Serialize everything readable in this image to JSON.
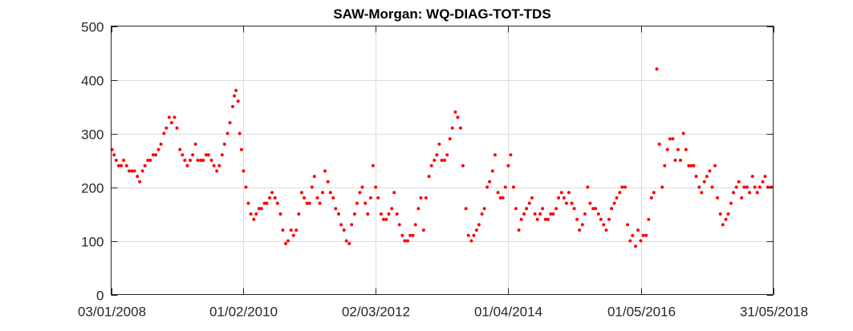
{
  "chart_data": {
    "type": "scatter",
    "title": "SAW-Morgan: WQ-DIAG-TOT-TDS",
    "xlabel": "",
    "ylabel": "",
    "x_axis_type": "date",
    "xlim": [
      "2008-01-03",
      "2018-05-31"
    ],
    "x_tick_labels": [
      "03/01/2008",
      "01/02/2010",
      "02/03/2012",
      "01/04/2014",
      "01/05/2016",
      "31/05/2018"
    ],
    "x_tick_dates": [
      "2008-01-03",
      "2010-02-01",
      "2012-03-02",
      "2014-04-01",
      "2016-05-01",
      "2018-05-31"
    ],
    "ylim": [
      0,
      500
    ],
    "y_ticks": [
      0,
      100,
      200,
      300,
      400,
      500
    ],
    "y_tick_labels": [
      "0",
      "100",
      "200",
      "300",
      "400",
      "500"
    ],
    "grid": true,
    "marker_color": "#ff0000",
    "series": [
      {
        "points": [
          [
            "2008-01-08",
            270
          ],
          [
            "2008-01-20",
            260
          ],
          [
            "2008-02-01",
            250
          ],
          [
            "2008-02-15",
            240
          ],
          [
            "2008-03-01",
            240
          ],
          [
            "2008-03-15",
            250
          ],
          [
            "2008-04-01",
            240
          ],
          [
            "2008-04-15",
            230
          ],
          [
            "2008-05-01",
            230
          ],
          [
            "2008-05-15",
            230
          ],
          [
            "2008-06-01",
            220
          ],
          [
            "2008-06-15",
            210
          ],
          [
            "2008-07-01",
            230
          ],
          [
            "2008-07-15",
            240
          ],
          [
            "2008-08-01",
            250
          ],
          [
            "2008-08-15",
            250
          ],
          [
            "2008-09-01",
            260
          ],
          [
            "2008-09-15",
            260
          ],
          [
            "2008-10-01",
            270
          ],
          [
            "2008-10-15",
            280
          ],
          [
            "2008-11-01",
            300
          ],
          [
            "2008-11-15",
            310
          ],
          [
            "2008-12-01",
            330
          ],
          [
            "2008-12-15",
            320
          ],
          [
            "2009-01-01",
            330
          ],
          [
            "2009-01-15",
            310
          ],
          [
            "2009-02-01",
            270
          ],
          [
            "2009-02-15",
            260
          ],
          [
            "2009-03-01",
            250
          ],
          [
            "2009-03-15",
            240
          ],
          [
            "2009-04-01",
            250
          ],
          [
            "2009-04-15",
            260
          ],
          [
            "2009-05-01",
            280
          ],
          [
            "2009-05-15",
            250
          ],
          [
            "2009-06-01",
            250
          ],
          [
            "2009-06-15",
            250
          ],
          [
            "2009-07-01",
            260
          ],
          [
            "2009-07-15",
            260
          ],
          [
            "2009-08-01",
            250
          ],
          [
            "2009-08-15",
            240
          ],
          [
            "2009-09-01",
            230
          ],
          [
            "2009-09-15",
            240
          ],
          [
            "2009-10-01",
            260
          ],
          [
            "2009-10-15",
            280
          ],
          [
            "2009-11-01",
            300
          ],
          [
            "2009-11-15",
            320
          ],
          [
            "2009-12-01",
            350
          ],
          [
            "2009-12-10",
            370
          ],
          [
            "2009-12-20",
            380
          ],
          [
            "2010-01-01",
            360
          ],
          [
            "2010-01-10",
            300
          ],
          [
            "2010-01-20",
            270
          ],
          [
            "2010-02-01",
            230
          ],
          [
            "2010-02-15",
            200
          ],
          [
            "2010-03-01",
            170
          ],
          [
            "2010-03-15",
            150
          ],
          [
            "2010-04-01",
            140
          ],
          [
            "2010-04-15",
            150
          ],
          [
            "2010-05-01",
            160
          ],
          [
            "2010-05-15",
            160
          ],
          [
            "2010-06-01",
            170
          ],
          [
            "2010-06-15",
            170
          ],
          [
            "2010-07-01",
            180
          ],
          [
            "2010-07-15",
            190
          ],
          [
            "2010-08-01",
            180
          ],
          [
            "2010-08-15",
            170
          ],
          [
            "2010-09-01",
            150
          ],
          [
            "2010-09-15",
            120
          ],
          [
            "2010-10-01",
            95
          ],
          [
            "2010-10-15",
            100
          ],
          [
            "2010-11-01",
            120
          ],
          [
            "2010-11-15",
            110
          ],
          [
            "2010-12-01",
            120
          ],
          [
            "2010-12-15",
            150
          ],
          [
            "2011-01-01",
            190
          ],
          [
            "2011-01-15",
            180
          ],
          [
            "2011-02-01",
            170
          ],
          [
            "2011-02-15",
            170
          ],
          [
            "2011-03-01",
            200
          ],
          [
            "2011-03-15",
            220
          ],
          [
            "2011-04-01",
            180
          ],
          [
            "2011-04-15",
            170
          ],
          [
            "2011-05-01",
            190
          ],
          [
            "2011-05-15",
            230
          ],
          [
            "2011-06-01",
            210
          ],
          [
            "2011-06-15",
            190
          ],
          [
            "2011-07-01",
            180
          ],
          [
            "2011-07-15",
            160
          ],
          [
            "2011-08-01",
            150
          ],
          [
            "2011-08-15",
            130
          ],
          [
            "2011-09-01",
            120
          ],
          [
            "2011-09-15",
            100
          ],
          [
            "2011-10-01",
            95
          ],
          [
            "2011-10-15",
            130
          ],
          [
            "2011-11-01",
            150
          ],
          [
            "2011-11-15",
            170
          ],
          [
            "2011-12-01",
            190
          ],
          [
            "2011-12-15",
            200
          ],
          [
            "2012-01-01",
            170
          ],
          [
            "2012-01-15",
            150
          ],
          [
            "2012-02-01",
            180
          ],
          [
            "2012-02-15",
            240
          ],
          [
            "2012-03-01",
            200
          ],
          [
            "2012-03-15",
            180
          ],
          [
            "2012-04-01",
            150
          ],
          [
            "2012-04-15",
            140
          ],
          [
            "2012-05-01",
            140
          ],
          [
            "2012-05-15",
            150
          ],
          [
            "2012-06-01",
            160
          ],
          [
            "2012-06-15",
            190
          ],
          [
            "2012-07-01",
            150
          ],
          [
            "2012-07-15",
            130
          ],
          [
            "2012-08-01",
            110
          ],
          [
            "2012-08-15",
            100
          ],
          [
            "2012-09-01",
            100
          ],
          [
            "2012-09-15",
            110
          ],
          [
            "2012-10-01",
            110
          ],
          [
            "2012-10-15",
            130
          ],
          [
            "2012-11-01",
            160
          ],
          [
            "2012-11-15",
            180
          ],
          [
            "2012-12-01",
            120
          ],
          [
            "2012-12-15",
            180
          ],
          [
            "2013-01-01",
            220
          ],
          [
            "2013-01-15",
            240
          ],
          [
            "2013-02-01",
            250
          ],
          [
            "2013-02-15",
            260
          ],
          [
            "2013-03-01",
            280
          ],
          [
            "2013-03-15",
            250
          ],
          [
            "2013-04-01",
            250
          ],
          [
            "2013-04-15",
            260
          ],
          [
            "2013-05-01",
            290
          ],
          [
            "2013-05-15",
            310
          ],
          [
            "2013-06-01",
            340
          ],
          [
            "2013-06-15",
            330
          ],
          [
            "2013-07-01",
            310
          ],
          [
            "2013-07-15",
            240
          ],
          [
            "2013-08-01",
            160
          ],
          [
            "2013-08-15",
            110
          ],
          [
            "2013-09-01",
            100
          ],
          [
            "2013-09-15",
            110
          ],
          [
            "2013-10-01",
            120
          ],
          [
            "2013-10-15",
            130
          ],
          [
            "2013-11-01",
            150
          ],
          [
            "2013-11-15",
            160
          ],
          [
            "2013-12-01",
            200
          ],
          [
            "2013-12-15",
            210
          ],
          [
            "2014-01-01",
            230
          ],
          [
            "2014-01-15",
            260
          ],
          [
            "2014-02-01",
            190
          ],
          [
            "2014-02-15",
            180
          ],
          [
            "2014-03-01",
            180
          ],
          [
            "2014-03-15",
            200
          ],
          [
            "2014-04-01",
            240
          ],
          [
            "2014-04-15",
            260
          ],
          [
            "2014-05-01",
            200
          ],
          [
            "2014-05-15",
            160
          ],
          [
            "2014-06-01",
            120
          ],
          [
            "2014-06-15",
            140
          ],
          [
            "2014-07-01",
            150
          ],
          [
            "2014-07-15",
            160
          ],
          [
            "2014-08-01",
            170
          ],
          [
            "2014-08-15",
            180
          ],
          [
            "2014-09-01",
            150
          ],
          [
            "2014-09-15",
            140
          ],
          [
            "2014-10-01",
            150
          ],
          [
            "2014-10-15",
            160
          ],
          [
            "2014-11-01",
            140
          ],
          [
            "2014-11-15",
            140
          ],
          [
            "2014-12-01",
            150
          ],
          [
            "2014-12-15",
            150
          ],
          [
            "2015-01-01",
            160
          ],
          [
            "2015-01-15",
            180
          ],
          [
            "2015-02-01",
            190
          ],
          [
            "2015-02-15",
            180
          ],
          [
            "2015-03-01",
            170
          ],
          [
            "2015-03-15",
            190
          ],
          [
            "2015-04-01",
            170
          ],
          [
            "2015-04-15",
            160
          ],
          [
            "2015-05-01",
            140
          ],
          [
            "2015-05-15",
            120
          ],
          [
            "2015-06-01",
            130
          ],
          [
            "2015-06-15",
            150
          ],
          [
            "2015-07-01",
            200
          ],
          [
            "2015-07-15",
            170
          ],
          [
            "2015-08-01",
            160
          ],
          [
            "2015-08-15",
            160
          ],
          [
            "2015-09-01",
            150
          ],
          [
            "2015-09-15",
            140
          ],
          [
            "2015-10-01",
            130
          ],
          [
            "2015-10-15",
            120
          ],
          [
            "2015-11-01",
            140
          ],
          [
            "2015-11-15",
            160
          ],
          [
            "2015-12-01",
            170
          ],
          [
            "2015-12-15",
            180
          ],
          [
            "2016-01-01",
            190
          ],
          [
            "2016-01-15",
            200
          ],
          [
            "2016-02-01",
            200
          ],
          [
            "2016-02-15",
            130
          ],
          [
            "2016-03-01",
            100
          ],
          [
            "2016-03-15",
            110
          ],
          [
            "2016-04-01",
            90
          ],
          [
            "2016-04-15",
            120
          ],
          [
            "2016-05-01",
            100
          ],
          [
            "2016-05-15",
            110
          ],
          [
            "2016-06-01",
            110
          ],
          [
            "2016-06-15",
            140
          ],
          [
            "2016-07-01",
            180
          ],
          [
            "2016-07-15",
            190
          ],
          [
            "2016-08-01",
            420
          ],
          [
            "2016-08-15",
            280
          ],
          [
            "2016-09-01",
            200
          ],
          [
            "2016-09-15",
            240
          ],
          [
            "2016-10-01",
            270
          ],
          [
            "2016-10-15",
            290
          ],
          [
            "2016-11-01",
            290
          ],
          [
            "2016-11-15",
            250
          ],
          [
            "2016-12-01",
            270
          ],
          [
            "2016-12-15",
            250
          ],
          [
            "2017-01-01",
            300
          ],
          [
            "2017-01-15",
            270
          ],
          [
            "2017-02-01",
            240
          ],
          [
            "2017-02-15",
            240
          ],
          [
            "2017-03-01",
            240
          ],
          [
            "2017-03-15",
            220
          ],
          [
            "2017-04-01",
            200
          ],
          [
            "2017-04-15",
            190
          ],
          [
            "2017-05-01",
            210
          ],
          [
            "2017-05-15",
            220
          ],
          [
            "2017-06-01",
            230
          ],
          [
            "2017-06-15",
            200
          ],
          [
            "2017-07-01",
            240
          ],
          [
            "2017-07-15",
            180
          ],
          [
            "2017-08-01",
            150
          ],
          [
            "2017-08-15",
            130
          ],
          [
            "2017-09-01",
            140
          ],
          [
            "2017-09-15",
            150
          ],
          [
            "2017-10-01",
            170
          ],
          [
            "2017-10-15",
            190
          ],
          [
            "2017-11-01",
            200
          ],
          [
            "2017-11-15",
            210
          ],
          [
            "2017-12-01",
            180
          ],
          [
            "2017-12-15",
            200
          ],
          [
            "2018-01-01",
            200
          ],
          [
            "2018-01-15",
            190
          ],
          [
            "2018-02-01",
            220
          ],
          [
            "2018-02-15",
            200
          ],
          [
            "2018-03-01",
            190
          ],
          [
            "2018-03-15",
            200
          ],
          [
            "2018-04-01",
            210
          ],
          [
            "2018-04-15",
            220
          ],
          [
            "2018-05-01",
            200
          ],
          [
            "2018-05-20",
            200
          ]
        ]
      }
    ]
  }
}
